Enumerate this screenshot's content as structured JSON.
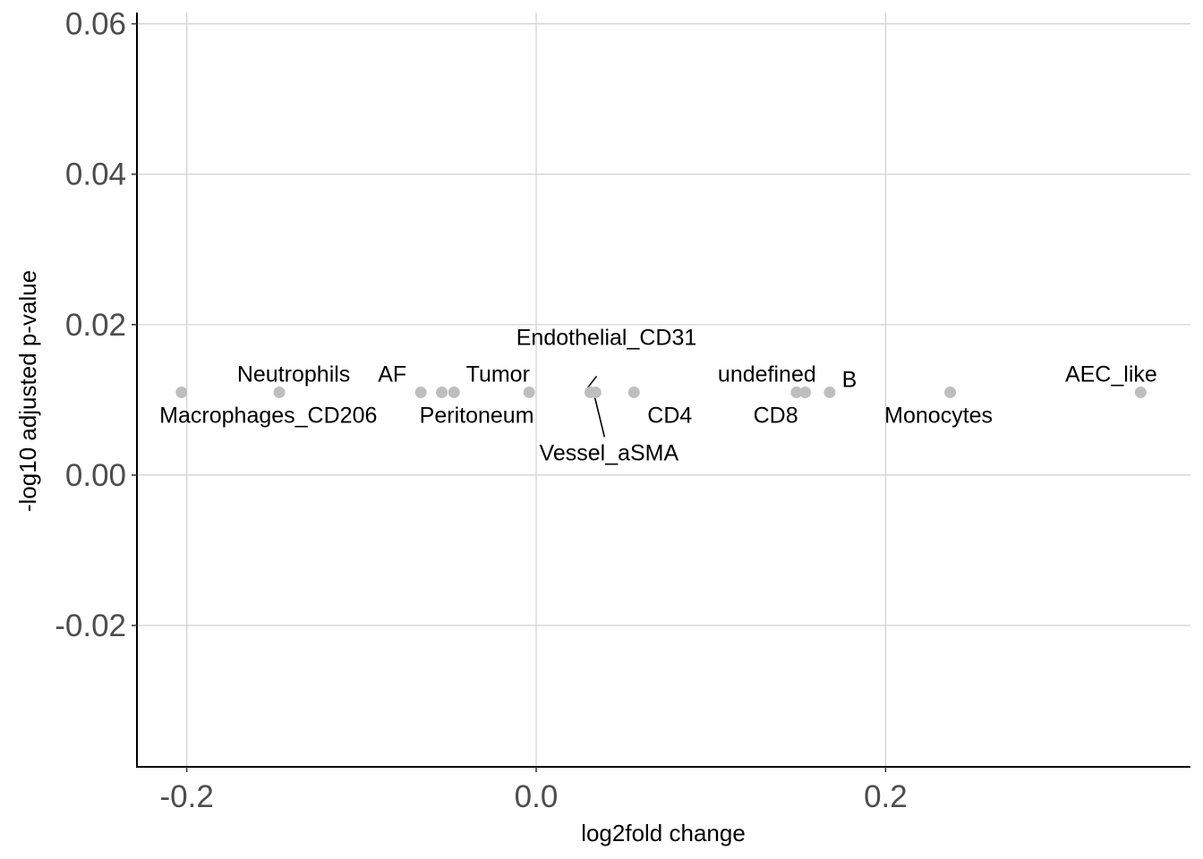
{
  "chart_data": {
    "type": "scatter",
    "title": "",
    "xlabel": "log2fold change",
    "ylabel": "-log10 adjusted p-value",
    "xlim": [
      -0.2285,
      0.3745
    ],
    "ylim": [
      -0.0388,
      0.0615
    ],
    "x_ticks": [
      -0.2,
      0.0,
      0.2
    ],
    "x_tick_labels": [
      "-0.2",
      "0.0",
      "0.2"
    ],
    "y_ticks": [
      -0.02,
      0.0,
      0.02,
      0.04,
      0.06
    ],
    "y_tick_labels": [
      "-0.02",
      "0.00",
      "0.02",
      "0.04",
      "0.06"
    ],
    "grid": true,
    "legend": "none",
    "point_color": "#bebebe",
    "points": [
      {
        "label": "Macrophages_CD206",
        "x": -0.203,
        "y": 0.011
      },
      {
        "label": "Neutrophils",
        "x": -0.147,
        "y": 0.011
      },
      {
        "label": "AF",
        "x": -0.066,
        "y": 0.011
      },
      {
        "label": "Peritoneum",
        "x": -0.054,
        "y": 0.011
      },
      {
        "label": "Tumor",
        "x": -0.047,
        "y": 0.011
      },
      {
        "label": "",
        "x": -0.004,
        "y": 0.011
      },
      {
        "label": "Endothelial_CD31",
        "x": 0.031,
        "y": 0.011
      },
      {
        "label": "Vessel_aSMA",
        "x": 0.034,
        "y": 0.011
      },
      {
        "label": "CD4",
        "x": 0.056,
        "y": 0.011
      },
      {
        "label": "undefined",
        "x": 0.149,
        "y": 0.011
      },
      {
        "label": "CD8",
        "x": 0.154,
        "y": 0.011
      },
      {
        "label": "B",
        "x": 0.168,
        "y": 0.011
      },
      {
        "label": "Monocytes",
        "x": 0.237,
        "y": 0.011
      },
      {
        "label": "AEC_like",
        "x": 0.346,
        "y": 0.011
      }
    ]
  }
}
